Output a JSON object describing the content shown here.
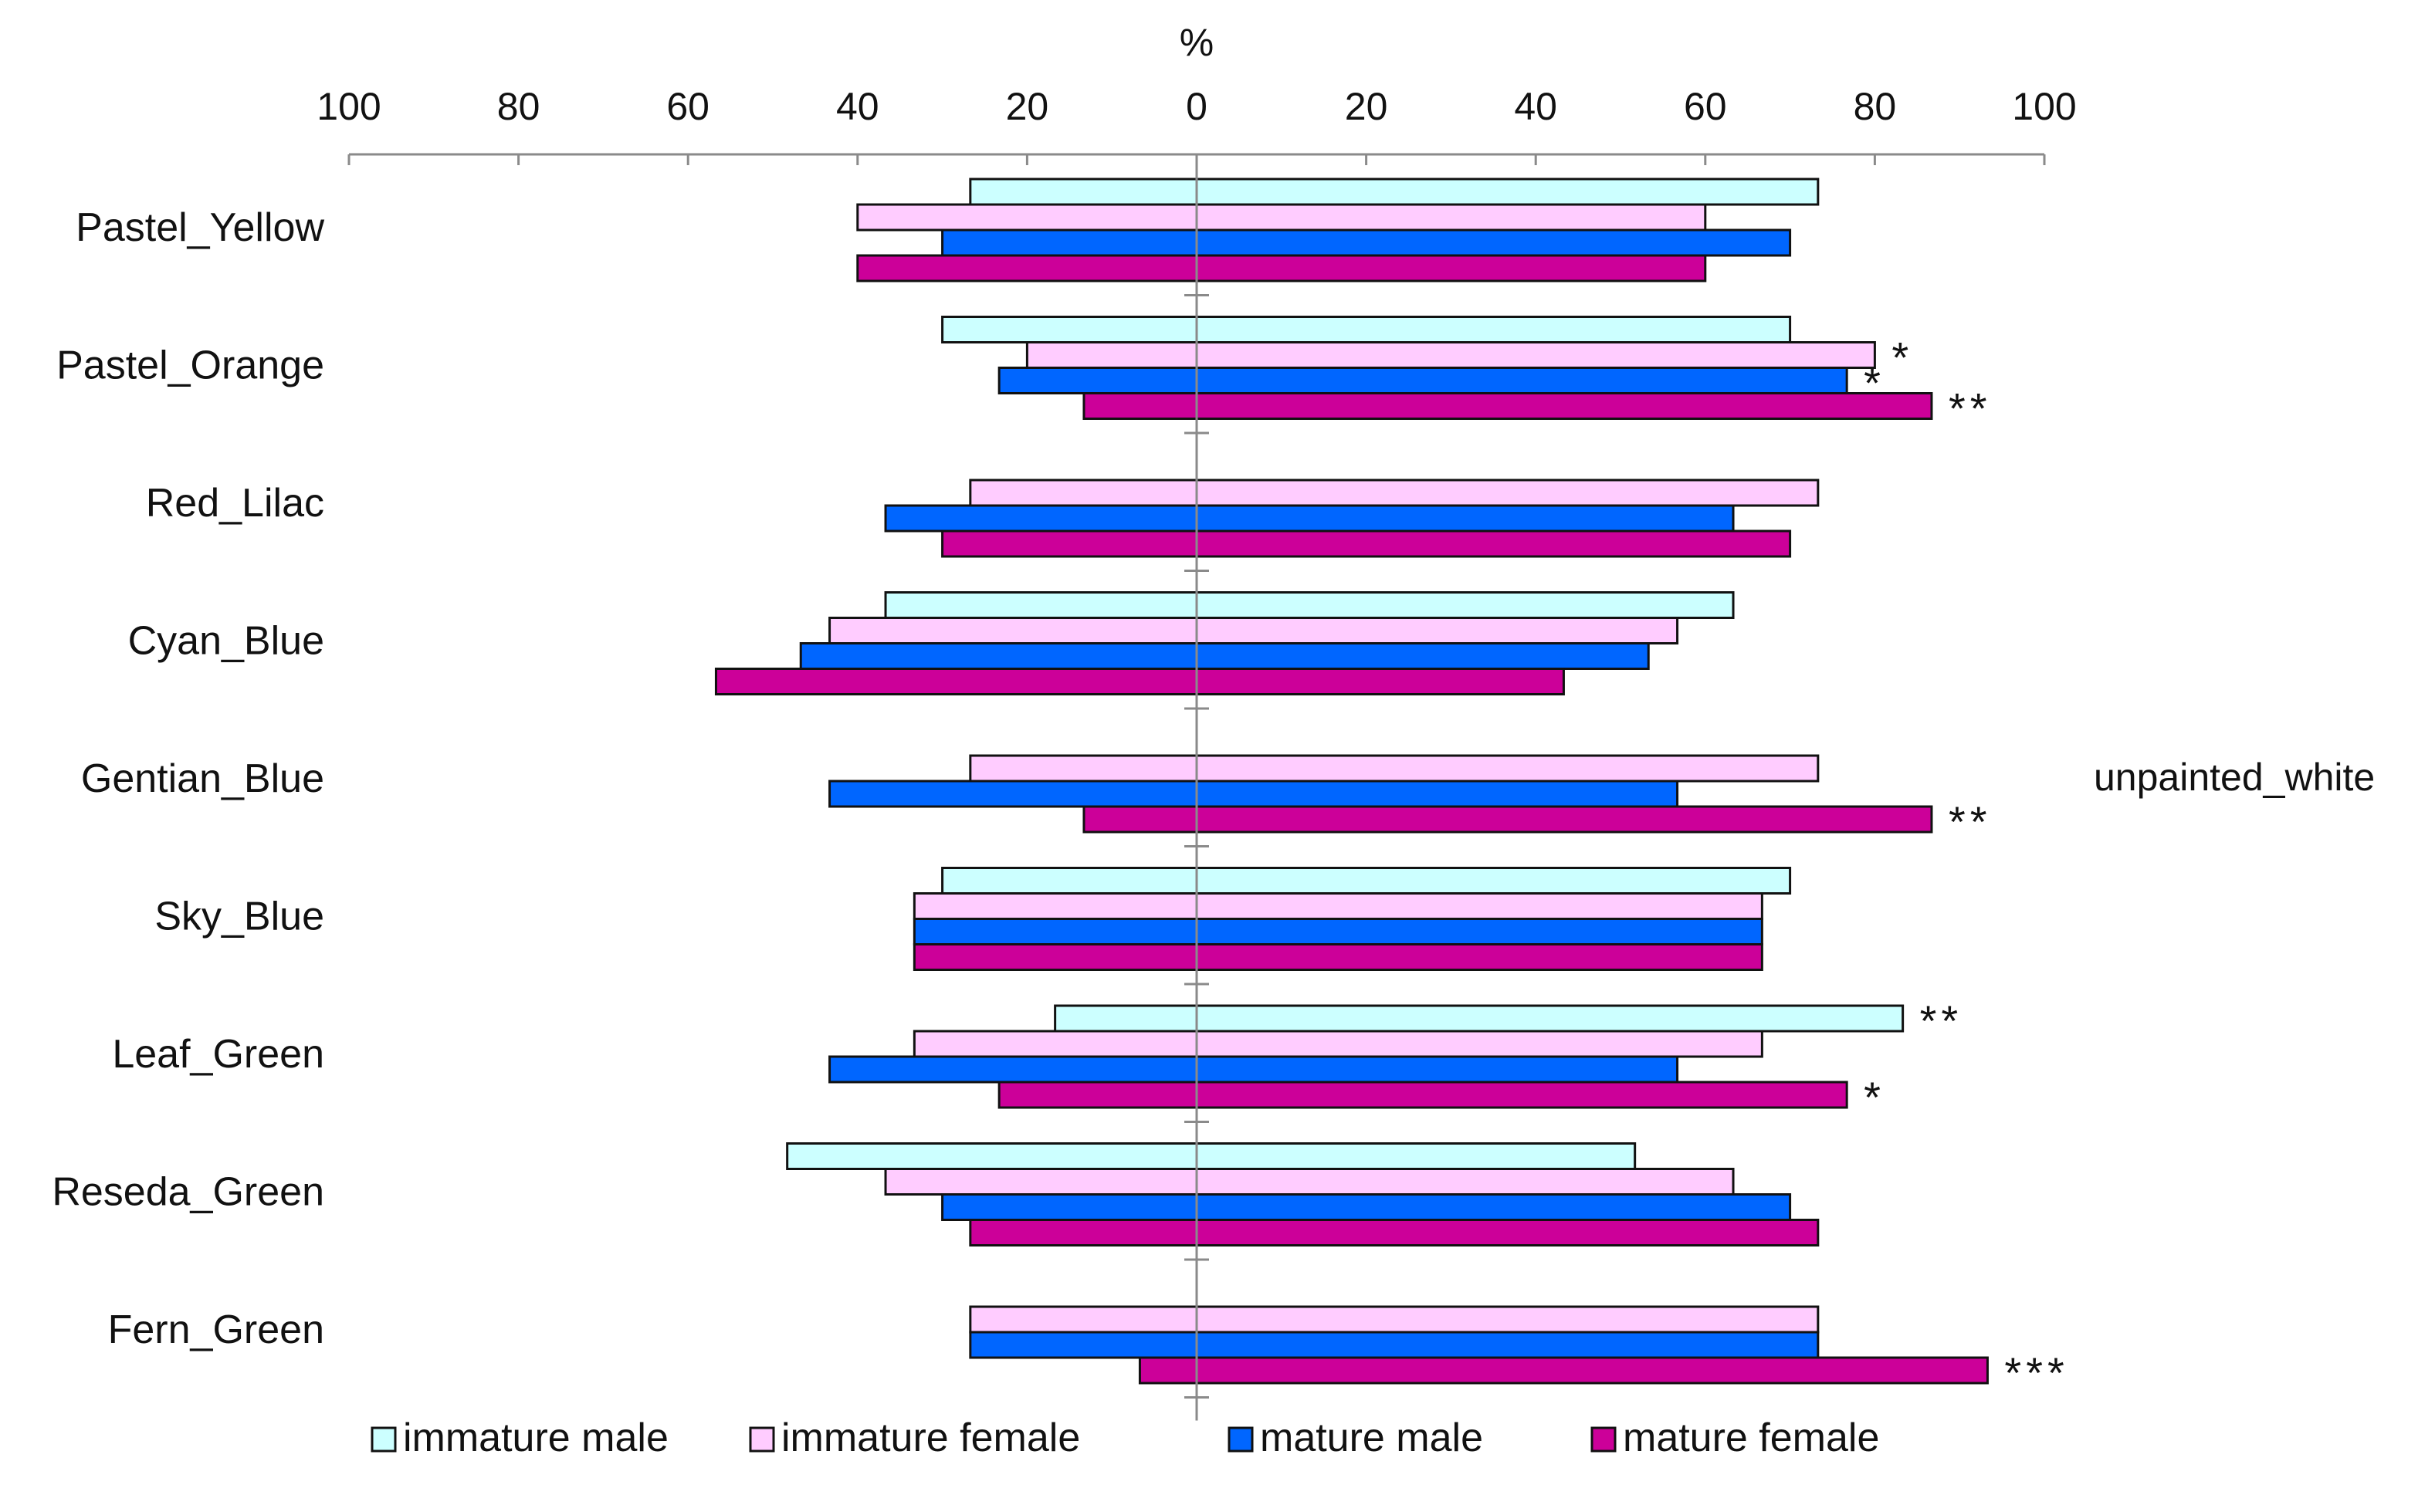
{
  "chart_data": {
    "type": "bar",
    "orientation": "horizontal-diverging",
    "title": "",
    "xlabel": "%",
    "ylabel": "",
    "xlim": [
      -100,
      100
    ],
    "x_ticks": [
      -100,
      -80,
      -60,
      -40,
      -20,
      0,
      20,
      40,
      60,
      80,
      100
    ],
    "x_tick_labels": [
      "100",
      "80",
      "60",
      "40",
      "20",
      "0",
      "20",
      "40",
      "60",
      "80",
      "100"
    ],
    "grid": false,
    "legend_position": "bottom",
    "side_label": "unpainted_white",
    "categories": [
      "Pastel_Yellow",
      "Pastel_Orange",
      "Red_Lilac",
      "Cyan_Blue",
      "Gentian_Blue",
      "Sky_Blue",
      "Leaf_Green",
      "Reseda_Green",
      "Fern_Green"
    ],
    "series": [
      {
        "name": "immature male",
        "color": "#ccffff",
        "left": [
          -26.7,
          -30.0,
          null,
          -36.7,
          null,
          -30.0,
          -16.7,
          -48.3,
          null
        ],
        "right": [
          73.3,
          70.0,
          null,
          63.3,
          null,
          70.0,
          83.3,
          51.7,
          null
        ],
        "annotations": [
          "",
          "",
          "",
          "",
          "",
          "",
          "**",
          "",
          ""
        ]
      },
      {
        "name": "immature female",
        "color": "#ffccff",
        "left": [
          -40.0,
          -20.0,
          -26.7,
          -43.3,
          -26.7,
          -33.3,
          -33.3,
          -36.7,
          -26.7
        ],
        "right": [
          60.0,
          80.0,
          73.3,
          56.7,
          73.3,
          66.7,
          66.7,
          63.3,
          73.3
        ],
        "annotations": [
          "",
          "*",
          "",
          "",
          "",
          "",
          "",
          "",
          ""
        ]
      },
      {
        "name": "mature male",
        "color": "#0066ff",
        "left": [
          -30.0,
          -23.3,
          -36.7,
          -46.7,
          -43.3,
          -33.3,
          -43.3,
          -30.0,
          -26.7
        ],
        "right": [
          70.0,
          76.7,
          63.3,
          53.3,
          56.7,
          66.7,
          56.7,
          70.0,
          73.3
        ],
        "annotations": [
          "",
          "*",
          "",
          "",
          "",
          "",
          "",
          "",
          ""
        ]
      },
      {
        "name": "mature female",
        "color": "#cc0099",
        "left": [
          -40.0,
          -13.3,
          -30.0,
          -56.7,
          -13.3,
          -33.3,
          -23.3,
          -26.7,
          -6.7
        ],
        "right": [
          60.0,
          86.7,
          70.0,
          43.3,
          86.7,
          66.7,
          76.7,
          73.3,
          93.3
        ],
        "annotations": [
          "",
          "**",
          "",
          "",
          "**",
          "",
          "*",
          "",
          "***"
        ]
      }
    ]
  }
}
